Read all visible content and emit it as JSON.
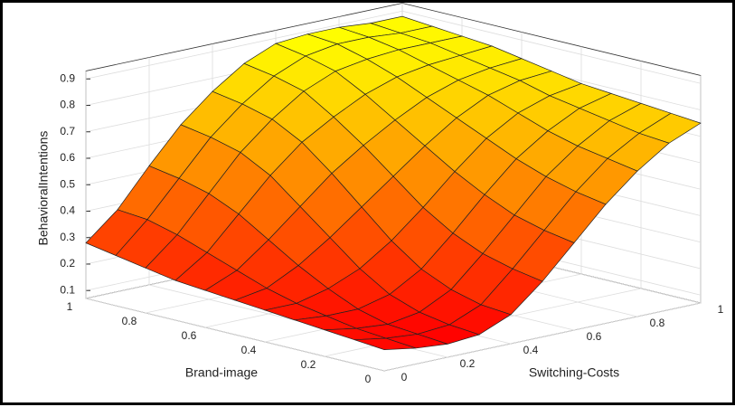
{
  "chart_data": {
    "type": "surface",
    "xlabel": "Switching-Costs",
    "ylabel": "Brand-image",
    "zlabel": "BehavioralIntentions",
    "x": [
      0,
      0.1,
      0.2,
      0.3,
      0.4,
      0.5,
      0.6,
      0.7,
      0.8,
      0.9,
      1
    ],
    "y": [
      0,
      0.1,
      0.2,
      0.3,
      0.4,
      0.5,
      0.6,
      0.7,
      0.8,
      0.9,
      1
    ],
    "z": [
      [
        0.15,
        0.13,
        0.12,
        0.13,
        0.18,
        0.28,
        0.4,
        0.52,
        0.62,
        0.7,
        0.75
      ],
      [
        0.16,
        0.14,
        0.13,
        0.14,
        0.19,
        0.3,
        0.42,
        0.54,
        0.64,
        0.71,
        0.76
      ],
      [
        0.17,
        0.15,
        0.14,
        0.16,
        0.22,
        0.33,
        0.45,
        0.57,
        0.66,
        0.73,
        0.77
      ],
      [
        0.18,
        0.17,
        0.17,
        0.2,
        0.27,
        0.38,
        0.5,
        0.61,
        0.69,
        0.75,
        0.78
      ],
      [
        0.19,
        0.19,
        0.22,
        0.27,
        0.35,
        0.45,
        0.56,
        0.66,
        0.73,
        0.77,
        0.79
      ],
      [
        0.2,
        0.22,
        0.28,
        0.36,
        0.45,
        0.54,
        0.63,
        0.71,
        0.77,
        0.8,
        0.81
      ],
      [
        0.21,
        0.26,
        0.35,
        0.45,
        0.55,
        0.63,
        0.7,
        0.76,
        0.8,
        0.82,
        0.83
      ],
      [
        0.22,
        0.3,
        0.42,
        0.54,
        0.64,
        0.71,
        0.77,
        0.81,
        0.83,
        0.84,
        0.85
      ],
      [
        0.24,
        0.34,
        0.47,
        0.6,
        0.7,
        0.78,
        0.83,
        0.85,
        0.86,
        0.86,
        0.86
      ],
      [
        0.26,
        0.37,
        0.5,
        0.63,
        0.73,
        0.81,
        0.86,
        0.88,
        0.88,
        0.87,
        0.87
      ],
      [
        0.28,
        0.38,
        0.52,
        0.65,
        0.75,
        0.83,
        0.88,
        0.89,
        0.89,
        0.88,
        0.88
      ]
    ],
    "xlim": [
      0,
      1
    ],
    "ylim": [
      0,
      1
    ],
    "zlim": [
      0.07,
      0.93
    ],
    "xticks": [
      0,
      0.2,
      0.4,
      0.6,
      0.8,
      1
    ],
    "yticks": [
      0,
      0.2,
      0.4,
      0.6,
      0.8,
      1
    ],
    "zticks": [
      0.1,
      0.2,
      0.3,
      0.4,
      0.5,
      0.6,
      0.7,
      0.8,
      0.9
    ],
    "colormap": [
      "#ff0000",
      "#ffff00"
    ],
    "grid": true
  }
}
